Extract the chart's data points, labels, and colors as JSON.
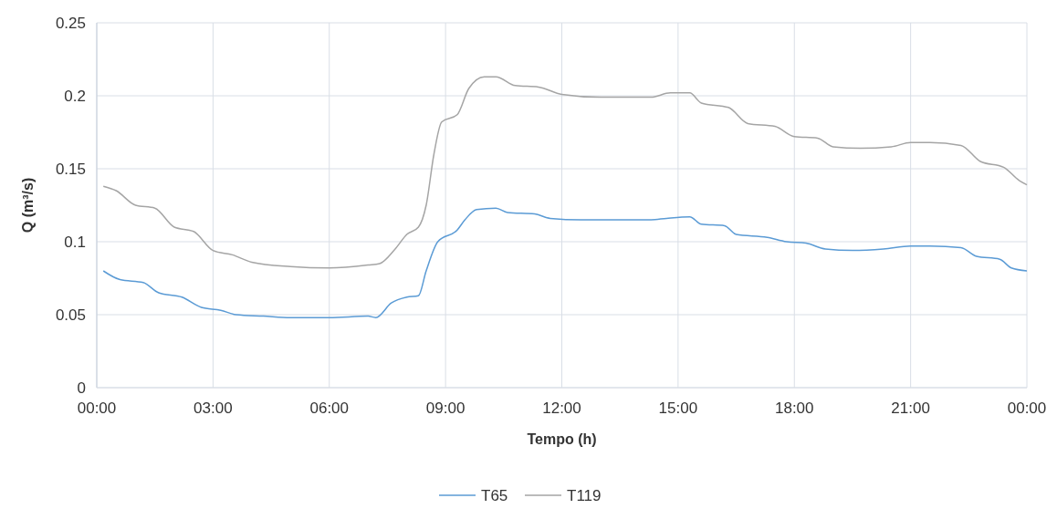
{
  "chart_data": {
    "type": "line",
    "xlabel": "Tempo (h)",
    "ylabel": "Q (m³/s)",
    "xlim": [
      0,
      24
    ],
    "xticks": [
      {
        "value": 0,
        "label": "00:00"
      },
      {
        "value": 3,
        "label": "03:00"
      },
      {
        "value": 6,
        "label": "06:00"
      },
      {
        "value": 9,
        "label": "09:00"
      },
      {
        "value": 12,
        "label": "12:00"
      },
      {
        "value": 15,
        "label": "15:00"
      },
      {
        "value": 18,
        "label": "18:00"
      },
      {
        "value": 21,
        "label": "21:00"
      },
      {
        "value": 24,
        "label": "00:00"
      }
    ],
    "ylim": [
      0,
      0.25
    ],
    "yticks": [
      0,
      0.05,
      0.1,
      0.15,
      0.2,
      0.25
    ],
    "grid": true,
    "legend": "bottom",
    "marker": "none",
    "line_style": "solid",
    "series": [
      {
        "name": "T65",
        "color": "#5b9bd5",
        "x": [
          0.17,
          0.6,
          1.2,
          1.6,
          2.2,
          2.7,
          3.2,
          3.6,
          4.3,
          5,
          6,
          7,
          7.2,
          7.6,
          8,
          8.3,
          8.5,
          8.8,
          9.3,
          9.5,
          9.8,
          10.3,
          10.6,
          11.3,
          11.7,
          12.5,
          14.3,
          14.7,
          15.3,
          15.6,
          16.2,
          16.5,
          17.3,
          17.8,
          18.3,
          18.8,
          19.5,
          20.3,
          21,
          21.5,
          22.3,
          22.7,
          23.3,
          23.6,
          24
        ],
        "values": [
          0.08,
          0.074,
          0.072,
          0.065,
          0.062,
          0.055,
          0.053,
          0.05,
          0.049,
          0.048,
          0.048,
          0.049,
          0.048,
          0.058,
          0.062,
          0.063,
          0.08,
          0.1,
          0.108,
          0.115,
          0.122,
          0.123,
          0.12,
          0.119,
          0.116,
          0.115,
          0.115,
          0.116,
          0.117,
          0.112,
          0.111,
          0.105,
          0.103,
          0.1,
          0.099,
          0.095,
          0.094,
          0.095,
          0.097,
          0.097,
          0.096,
          0.09,
          0.088,
          0.082,
          0.08
        ]
      },
      {
        "name": "T119",
        "color": "#a5a5a5",
        "x": [
          0.17,
          0.5,
          1,
          1.5,
          2,
          2.5,
          3,
          3.5,
          4,
          5,
          6,
          7,
          7.3,
          7.7,
          8,
          8.3,
          8.5,
          8.7,
          8.9,
          9.3,
          9.6,
          10,
          10.3,
          10.8,
          11.4,
          12,
          13,
          14.3,
          14.8,
          15.3,
          15.6,
          16.3,
          16.8,
          17.5,
          18,
          18.6,
          19,
          19.7,
          20.5,
          21,
          21.5,
          22.3,
          22.8,
          23.4,
          23.8,
          24
        ],
        "values": [
          0.138,
          0.135,
          0.125,
          0.123,
          0.11,
          0.107,
          0.094,
          0.091,
          0.086,
          0.083,
          0.082,
          0.084,
          0.085,
          0.095,
          0.105,
          0.11,
          0.125,
          0.16,
          0.182,
          0.187,
          0.205,
          0.213,
          0.213,
          0.207,
          0.206,
          0.201,
          0.199,
          0.199,
          0.202,
          0.202,
          0.195,
          0.192,
          0.181,
          0.179,
          0.172,
          0.171,
          0.165,
          0.164,
          0.165,
          0.168,
          0.168,
          0.166,
          0.155,
          0.151,
          0.142,
          0.139
        ]
      }
    ]
  }
}
